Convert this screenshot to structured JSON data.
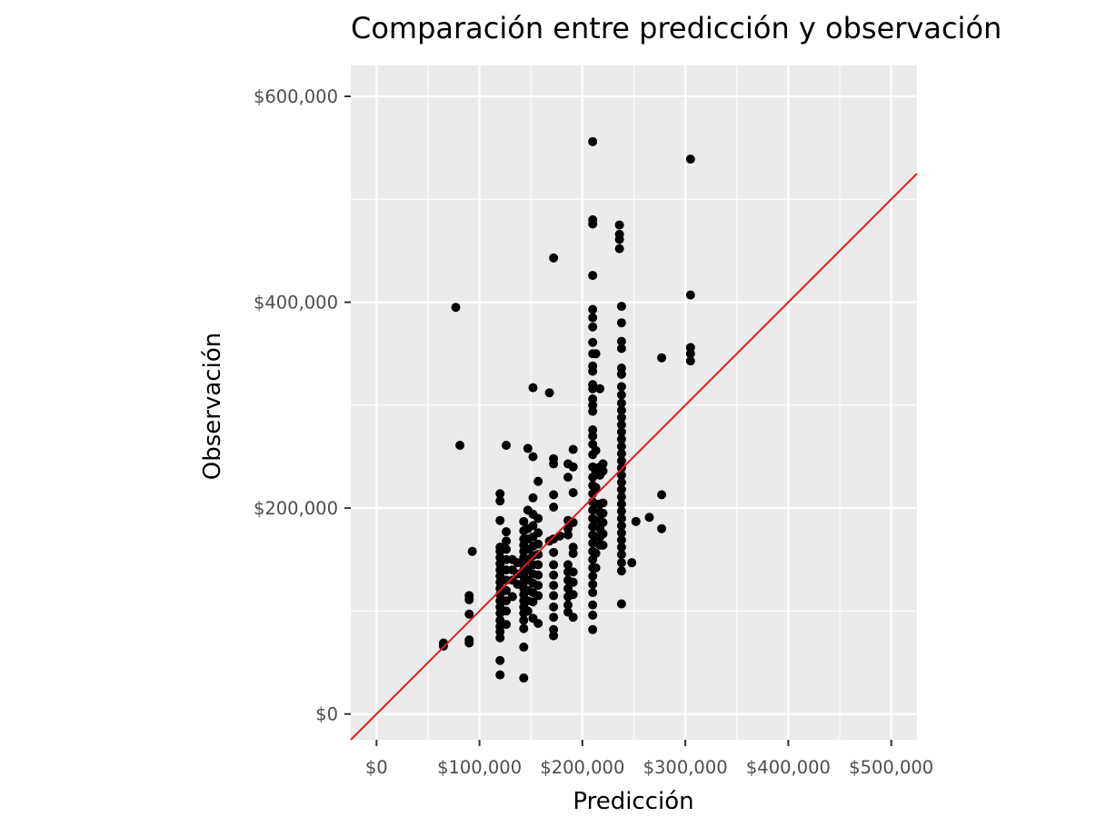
{
  "chart_data": {
    "type": "scatter",
    "title": "Comparación entre predicción y observación",
    "xlabel": "Predicción",
    "ylabel": "Observación",
    "xlim": [
      -25000,
      525000
    ],
    "ylim": [
      -25000,
      630000
    ],
    "x_ticks": [
      0,
      100000,
      200000,
      300000,
      400000,
      500000
    ],
    "x_tick_labels": [
      "$0",
      "$100,000",
      "$200,000",
      "$300,000",
      "$400,000",
      "$500,000"
    ],
    "y_ticks": [
      0,
      200000,
      400000,
      600000
    ],
    "y_tick_labels": [
      "$0",
      "$200,000",
      "$400,000",
      "$600,000"
    ],
    "grid": true,
    "legend": "none",
    "background": "#ebebeb",
    "point_color": "#000000",
    "reference_line": {
      "label": "",
      "slope": 1,
      "intercept": 0,
      "color": "#e41a1c"
    },
    "series": [
      {
        "points": [
          [
            65000,
            69000
          ],
          [
            65000,
            66000
          ],
          [
            90000,
            115000
          ],
          [
            90000,
            111000
          ],
          [
            90000,
            97000
          ],
          [
            90000,
            72000
          ],
          [
            90000,
            69000
          ],
          [
            93000,
            158000
          ],
          [
            77000,
            395000
          ],
          [
            81000,
            261000
          ],
          [
            120000,
            214000
          ],
          [
            120000,
            207000
          ],
          [
            120000,
            188000
          ],
          [
            120000,
            162000
          ],
          [
            120000,
            158000
          ],
          [
            120000,
            152000
          ],
          [
            120000,
            146000
          ],
          [
            120000,
            140000
          ],
          [
            120000,
            134000
          ],
          [
            120000,
            128000
          ],
          [
            120000,
            122000
          ],
          [
            120000,
            116000
          ],
          [
            120000,
            110000
          ],
          [
            120000,
            104000
          ],
          [
            120000,
            98000
          ],
          [
            120000,
            91000
          ],
          [
            120000,
            85000
          ],
          [
            120000,
            80000
          ],
          [
            120000,
            74000
          ],
          [
            120000,
            52000
          ],
          [
            120000,
            38000
          ],
          [
            126000,
            261000
          ],
          [
            126000,
            177000
          ],
          [
            126000,
            168000
          ],
          [
            126000,
            160000
          ],
          [
            126000,
            150000
          ],
          [
            126000,
            140000
          ],
          [
            126000,
            130000
          ],
          [
            126000,
            120000
          ],
          [
            126000,
            110000
          ],
          [
            126000,
            100000
          ],
          [
            126000,
            87000
          ],
          [
            132000,
            150000
          ],
          [
            132000,
            140000
          ],
          [
            132000,
            130000
          ],
          [
            132000,
            114000
          ],
          [
            137000,
            147000
          ],
          [
            137000,
            136000
          ],
          [
            137000,
            126000
          ],
          [
            143000,
            187000
          ],
          [
            143000,
            178000
          ],
          [
            143000,
            170000
          ],
          [
            143000,
            164000
          ],
          [
            143000,
            158000
          ],
          [
            143000,
            152000
          ],
          [
            143000,
            146000
          ],
          [
            143000,
            140000
          ],
          [
            143000,
            134000
          ],
          [
            143000,
            128000
          ],
          [
            143000,
            122000
          ],
          [
            143000,
            116000
          ],
          [
            143000,
            110000
          ],
          [
            143000,
            104000
          ],
          [
            143000,
            98000
          ],
          [
            143000,
            91000
          ],
          [
            143000,
            83000
          ],
          [
            143000,
            65000
          ],
          [
            143000,
            35000
          ],
          [
            147000,
            258000
          ],
          [
            147000,
            198000
          ],
          [
            147000,
            180000
          ],
          [
            147000,
            170000
          ],
          [
            147000,
            160000
          ],
          [
            147000,
            150000
          ],
          [
            147000,
            140000
          ],
          [
            147000,
            130000
          ],
          [
            147000,
            120000
          ],
          [
            147000,
            110000
          ],
          [
            147000,
            100000
          ],
          [
            152000,
            317000
          ],
          [
            152000,
            250000
          ],
          [
            152000,
            210000
          ],
          [
            152000,
            194000
          ],
          [
            152000,
            183000
          ],
          [
            152000,
            172000
          ],
          [
            152000,
            163000
          ],
          [
            152000,
            154000
          ],
          [
            152000,
            145000
          ],
          [
            152000,
            136000
          ],
          [
            152000,
            127000
          ],
          [
            152000,
            118000
          ],
          [
            152000,
            109000
          ],
          [
            152000,
            93000
          ],
          [
            157000,
            226000
          ],
          [
            157000,
            190000
          ],
          [
            157000,
            176000
          ],
          [
            157000,
            165000
          ],
          [
            157000,
            155000
          ],
          [
            157000,
            145000
          ],
          [
            157000,
            135000
          ],
          [
            157000,
            125000
          ],
          [
            157000,
            115000
          ],
          [
            157000,
            88000
          ],
          [
            168000,
            312000
          ],
          [
            168000,
            168000
          ],
          [
            172000,
            443000
          ],
          [
            172000,
            248000
          ],
          [
            172000,
            243000
          ],
          [
            172000,
            213000
          ],
          [
            172000,
            201000
          ],
          [
            172000,
            170000
          ],
          [
            172000,
            157000
          ],
          [
            172000,
            145000
          ],
          [
            172000,
            135000
          ],
          [
            172000,
            125000
          ],
          [
            172000,
            115000
          ],
          [
            172000,
            104000
          ],
          [
            172000,
            94000
          ],
          [
            172000,
            82000
          ],
          [
            172000,
            76000
          ],
          [
            178000,
            173000
          ],
          [
            186000,
            243000
          ],
          [
            186000,
            230000
          ],
          [
            186000,
            188000
          ],
          [
            186000,
            180000
          ],
          [
            186000,
            174000
          ],
          [
            186000,
            145000
          ],
          [
            186000,
            138000
          ],
          [
            186000,
            130000
          ],
          [
            186000,
            122000
          ],
          [
            186000,
            114000
          ],
          [
            186000,
            106000
          ],
          [
            186000,
            99000
          ],
          [
            191000,
            257000
          ],
          [
            191000,
            240000
          ],
          [
            191000,
            215000
          ],
          [
            191000,
            186000
          ],
          [
            191000,
            162000
          ],
          [
            191000,
            156000
          ],
          [
            191000,
            138000
          ],
          [
            191000,
            128000
          ],
          [
            191000,
            116000
          ],
          [
            191000,
            94000
          ],
          [
            210000,
            556000
          ],
          [
            210000,
            480000
          ],
          [
            210000,
            476000
          ],
          [
            210000,
            426000
          ],
          [
            210000,
            393000
          ],
          [
            210000,
            385000
          ],
          [
            210000,
            376000
          ],
          [
            210000,
            361000
          ],
          [
            210000,
            350000
          ],
          [
            210000,
            338000
          ],
          [
            210000,
            333000
          ],
          [
            210000,
            320000
          ],
          [
            210000,
            316000
          ],
          [
            210000,
            306000
          ],
          [
            210000,
            300000
          ],
          [
            210000,
            294000
          ],
          [
            210000,
            276000
          ],
          [
            210000,
            270000
          ],
          [
            210000,
            262000
          ],
          [
            210000,
            252000
          ],
          [
            210000,
            240000
          ],
          [
            210000,
            230000
          ],
          [
            210000,
            222000
          ],
          [
            210000,
            214000
          ],
          [
            210000,
            206000
          ],
          [
            210000,
            198000
          ],
          [
            210000,
            190000
          ],
          [
            210000,
            182000
          ],
          [
            210000,
            174000
          ],
          [
            210000,
            166000
          ],
          [
            210000,
            158000
          ],
          [
            210000,
            150000
          ],
          [
            210000,
            142000
          ],
          [
            210000,
            134000
          ],
          [
            210000,
            126000
          ],
          [
            210000,
            118000
          ],
          [
            210000,
            106000
          ],
          [
            210000,
            96000
          ],
          [
            210000,
            82000
          ],
          [
            213000,
            350000
          ],
          [
            213000,
            256000
          ],
          [
            213000,
            236000
          ],
          [
            213000,
            220000
          ],
          [
            213000,
            204000
          ],
          [
            213000,
            188000
          ],
          [
            213000,
            172000
          ],
          [
            213000,
            156000
          ],
          [
            213000,
            142000
          ],
          [
            217000,
            316000
          ],
          [
            217000,
            240000
          ],
          [
            217000,
            232000
          ],
          [
            217000,
            204000
          ],
          [
            217000,
            196000
          ],
          [
            217000,
            188000
          ],
          [
            217000,
            180000
          ],
          [
            217000,
            172000
          ],
          [
            217000,
            164000
          ],
          [
            220000,
            243000
          ],
          [
            220000,
            236000
          ],
          [
            220000,
            205000
          ],
          [
            220000,
            195000
          ],
          [
            220000,
            186000
          ],
          [
            220000,
            175000
          ],
          [
            220000,
            164000
          ],
          [
            236000,
            475000
          ],
          [
            236000,
            466000
          ],
          [
            236000,
            461000
          ],
          [
            236000,
            452000
          ],
          [
            238000,
            396000
          ],
          [
            238000,
            380000
          ],
          [
            238000,
            362000
          ],
          [
            238000,
            355000
          ],
          [
            238000,
            336000
          ],
          [
            238000,
            330000
          ],
          [
            238000,
            318000
          ],
          [
            238000,
            310000
          ],
          [
            238000,
            302000
          ],
          [
            238000,
            295000
          ],
          [
            238000,
            288000
          ],
          [
            238000,
            281000
          ],
          [
            238000,
            274000
          ],
          [
            238000,
            267000
          ],
          [
            238000,
            260000
          ],
          [
            238000,
            253000
          ],
          [
            238000,
            246000
          ],
          [
            238000,
            239000
          ],
          [
            238000,
            232000
          ],
          [
            238000,
            225000
          ],
          [
            238000,
            218000
          ],
          [
            238000,
            211000
          ],
          [
            238000,
            204000
          ],
          [
            238000,
            197000
          ],
          [
            238000,
            190000
          ],
          [
            238000,
            183000
          ],
          [
            238000,
            176000
          ],
          [
            238000,
            169000
          ],
          [
            238000,
            162000
          ],
          [
            238000,
            155000
          ],
          [
            238000,
            147000
          ],
          [
            238000,
            139000
          ],
          [
            238000,
            107000
          ],
          [
            248000,
            147000
          ],
          [
            252000,
            187000
          ],
          [
            265000,
            191000
          ],
          [
            277000,
            346000
          ],
          [
            277000,
            213000
          ],
          [
            277000,
            180000
          ],
          [
            305000,
            539000
          ],
          [
            305000,
            407000
          ],
          [
            305000,
            356000
          ],
          [
            305000,
            350000
          ],
          [
            305000,
            343000
          ]
        ]
      }
    ]
  }
}
